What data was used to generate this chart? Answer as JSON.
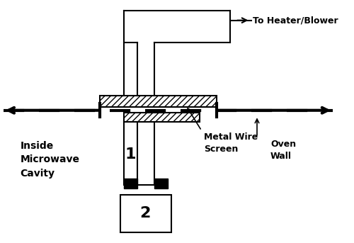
{
  "bg_color": "#ffffff",
  "line_color": "#000000",
  "labels": {
    "heater_blower": "To Heater/Blower",
    "inside_microwave": "Inside\nMicrowave\nCavity",
    "metal_wire_screen": "Metal Wire\nScreen",
    "oven_wall": "Oven\nWall",
    "label1": "1",
    "label2": "2"
  },
  "figsize": [
    5.0,
    3.43
  ],
  "dpi": 100
}
